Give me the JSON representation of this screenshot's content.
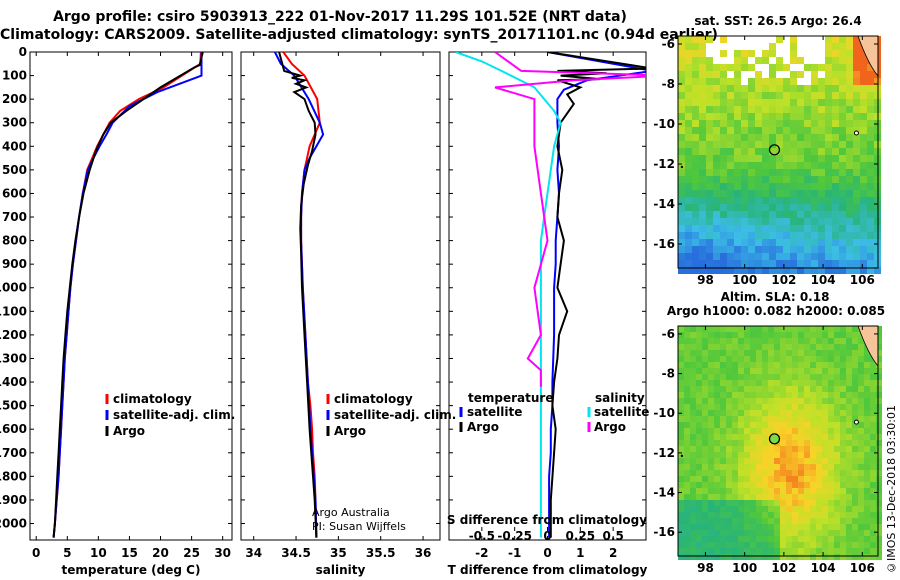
{
  "header": {
    "line1": "Argo profile: csiro 5903913_222 01-Nov-2017 11.29S 101.52E (NRT data)",
    "line2": "Climatology: CARS2009. Satellite-adjusted climatology: synTS_20171101.nc (0.94d earlier)"
  },
  "stamp": "©IMOS 13-Dec-2018 03:30:01",
  "colors": {
    "climatology": "#ff0000",
    "satellite": "#0000ff",
    "argo": "#000000",
    "sat_salinity": "#00e5ee",
    "argo_salinity": "#ff00ff"
  },
  "chart_data": [
    {
      "id": "temperature",
      "type": "line",
      "xlabel": "temperature (deg C)",
      "ylabel": "",
      "xlim": [
        -1,
        31.5
      ],
      "ylim": [
        2070,
        0
      ],
      "xticks": [
        0,
        5,
        10,
        15,
        20,
        25,
        30
      ],
      "yticks": [
        0,
        100,
        200,
        300,
        400,
        500,
        600,
        700,
        800,
        900,
        1000,
        1100,
        1200,
        1300,
        1400,
        1500,
        1600,
        1700,
        1800,
        1900,
        2000
      ],
      "legend": [
        "climatology",
        "satellite-adj. clim.",
        "Argo"
      ],
      "series": [
        {
          "name": "climatology",
          "color": "#ff0000",
          "x": [
            26.5,
            26.4,
            20.5,
            16.5,
            13.5,
            11.8,
            10.8,
            9.8,
            9.0,
            8.2,
            7.5,
            6.9,
            6.4,
            5.9,
            5.5,
            5.2,
            4.9,
            4.6,
            4.4,
            4.2,
            4.0,
            3.8,
            3.6,
            3.45,
            3.3,
            3.15,
            3.0,
            2.9,
            2.8
          ],
          "y": [
            0,
            50,
            150,
            200,
            250,
            300,
            350,
            400,
            450,
            500,
            600,
            700,
            800,
            900,
            1000,
            1100,
            1200,
            1300,
            1400,
            1500,
            1600,
            1700,
            1800,
            1850,
            1900,
            1950,
            2000,
            2030,
            2060
          ]
        },
        {
          "name": "satellite-adj. clim.",
          "color": "#0000ff",
          "x": [
            26.6,
            26.6,
            25.6,
            19.5,
            15.0,
            12.3,
            11.3,
            10.2,
            9.2,
            8.3,
            7.5,
            6.9,
            6.4,
            5.9,
            5.5,
            5.2,
            4.9,
            4.6,
            4.4,
            4.2,
            4.0,
            3.8,
            3.6,
            3.3,
            3.0,
            2.8
          ],
          "y": [
            0,
            100,
            110,
            170,
            230,
            300,
            350,
            400,
            450,
            500,
            600,
            700,
            800,
            900,
            1000,
            1100,
            1200,
            1300,
            1400,
            1500,
            1600,
            1700,
            1800,
            1900,
            2000,
            2060
          ]
        },
        {
          "name": "Argo",
          "color": "#000000",
          "x": [
            26.8,
            26.3,
            25.5,
            20.0,
            14.5,
            12.0,
            10.8,
            9.6,
            8.6,
            7.6,
            6.9,
            6.3,
            5.8,
            5.4,
            5.0,
            4.7,
            4.4,
            4.2,
            4.0,
            3.8,
            3.6,
            3.4,
            3.2,
            3.0,
            2.8
          ],
          "y": [
            0,
            55,
            65,
            150,
            250,
            300,
            350,
            420,
            500,
            600,
            700,
            800,
            900,
            1000,
            1100,
            1200,
            1300,
            1400,
            1500,
            1600,
            1700,
            1800,
            1900,
            2000,
            2060
          ]
        }
      ]
    },
    {
      "id": "salinity",
      "type": "line",
      "xlabel": "salinity",
      "xlim": [
        33.85,
        36.2
      ],
      "ylim": [
        2070,
        0
      ],
      "xticks": [
        34,
        34.5,
        35,
        35.5,
        36
      ],
      "legend": [
        "climatology",
        "satellite-adj. clim.",
        "Argo"
      ],
      "note": [
        "Argo Australia",
        "PI: Susan Wijffels"
      ],
      "series": [
        {
          "name": "climatology",
          "color": "#ff0000",
          "x": [
            34.35,
            34.45,
            34.6,
            34.75,
            34.78,
            34.72,
            34.66,
            34.6,
            34.57,
            34.56,
            34.56,
            34.58,
            34.61,
            34.64,
            34.67,
            34.69,
            34.7,
            34.72,
            34.73,
            34.74
          ],
          "y": [
            0,
            50,
            100,
            200,
            300,
            350,
            400,
            500,
            600,
            700,
            800,
            1000,
            1200,
            1400,
            1500,
            1600,
            1700,
            1800,
            1900,
            2060
          ]
        },
        {
          "name": "satellite-adj. clim.",
          "color": "#0000ff",
          "x": [
            34.25,
            34.32,
            34.48,
            34.65,
            34.78,
            34.82,
            34.74,
            34.66,
            34.6,
            34.57,
            34.56,
            34.56,
            34.58,
            34.61,
            34.64,
            34.67,
            34.69,
            34.71,
            34.73,
            34.74
          ],
          "y": [
            0,
            50,
            100,
            200,
            300,
            350,
            400,
            450,
            500,
            600,
            700,
            800,
            1000,
            1200,
            1400,
            1600,
            1700,
            1800,
            1900,
            2060
          ]
        },
        {
          "name": "Argo",
          "color": "#000000",
          "x": [
            34.3,
            34.33,
            34.36,
            34.55,
            34.45,
            34.6,
            34.5,
            34.62,
            34.48,
            34.6,
            34.65,
            34.72,
            34.73,
            34.69,
            34.64,
            34.59,
            34.56,
            34.55,
            34.56,
            34.57,
            34.6,
            34.63,
            34.66,
            34.68,
            34.7,
            34.72,
            34.74
          ],
          "y": [
            0,
            40,
            80,
            100,
            110,
            120,
            135,
            150,
            170,
            200,
            250,
            300,
            350,
            420,
            480,
            560,
            650,
            750,
            850,
            1000,
            1200,
            1400,
            1600,
            1700,
            1800,
            1900,
            2060
          ]
        }
      ]
    },
    {
      "id": "difference",
      "type": "line",
      "xlabel": "T difference from climatology",
      "xlabel2": "S difference from climatology",
      "xlim": [
        -3,
        3
      ],
      "ylim": [
        2070,
        0
      ],
      "xticks": [
        -2,
        -1,
        0,
        1,
        2
      ],
      "xticks_s": [
        -0.5,
        -0.25,
        0,
        0.25,
        0.5
      ],
      "xticks_s_labels": [
        "-0.5",
        "-0.25",
        "0",
        "0.25",
        "0.5"
      ],
      "legend_left_title": "temperature",
      "legend_right_title": "salinity",
      "legend_left": [
        "satellite",
        "Argo"
      ],
      "legend_right": [
        "satellite",
        "Argo"
      ],
      "series": [
        {
          "name": "T satellite",
          "color": "#0000ff",
          "x": [
            0.0,
            3.2,
            1.2,
            0.5,
            0.3,
            0.3,
            0.35,
            0.3,
            0.35,
            0.3,
            0.25,
            0.25,
            0.2,
            0.2,
            0.15,
            0.15,
            0.1,
            0.1,
            0.05,
            0.05,
            0.05
          ],
          "y": [
            0,
            80,
            120,
            160,
            200,
            300,
            400,
            500,
            600,
            700,
            800,
            900,
            1000,
            1200,
            1400,
            1500,
            1600,
            1700,
            1800,
            1900,
            2060
          ]
        },
        {
          "name": "T Argo",
          "color": "#000000",
          "x": [
            0.0,
            3.2,
            0.3,
            1.8,
            0.4,
            1.6,
            0.3,
            1.0,
            0.6,
            0.8,
            0.6,
            0.4,
            0.3,
            0.45,
            0.35,
            0.3,
            0.5,
            0.4,
            0.3,
            0.6,
            0.35,
            0.3,
            0.2,
            0.15,
            0.25,
            0.2,
            0.1,
            0.1
          ],
          "y": [
            0,
            70,
            80,
            90,
            100,
            115,
            120,
            150,
            180,
            220,
            260,
            300,
            400,
            500,
            600,
            700,
            800,
            900,
            1000,
            1100,
            1200,
            1300,
            1400,
            1500,
            1600,
            1700,
            1900,
            2060
          ]
        },
        {
          "name": "S satellite",
          "color": "#00e5ee",
          "x": [
            -0.7,
            -0.5,
            -0.35,
            -0.1,
            0.05,
            0.1,
            0.05,
            0.0,
            -0.05,
            -0.05,
            -0.05,
            -0.05,
            -0.05,
            -0.05,
            -0.05,
            -0.05
          ],
          "y": [
            0,
            40,
            80,
            150,
            250,
            300,
            400,
            600,
            800,
            1000,
            1200,
            1400,
            1500,
            1600,
            1800,
            2060
          ]
        },
        {
          "name": "S Argo",
          "color": "#ff00ff",
          "x": [
            -0.4,
            -0.2,
            0.9,
            0.2,
            -0.4,
            -0.1,
            -0.1,
            -0.05,
            0.0,
            -0.1,
            -0.05,
            -0.15,
            -0.05,
            -0.05
          ],
          "y": [
            0,
            80,
            100,
            120,
            150,
            200,
            400,
            600,
            800,
            1000,
            1200,
            1300,
            1350,
            1420
          ]
        }
      ]
    },
    {
      "id": "sst_map",
      "type": "heatmap",
      "title": "sat. SST: 26.5 Argo: 26.4",
      "xticks": [
        98,
        100,
        102,
        104,
        106
      ],
      "yticks": [
        -6,
        -8,
        -10,
        -12,
        -14,
        -16
      ],
      "xlim": [
        96.6,
        106.8
      ],
      "ylim": [
        -17.2,
        -5.6
      ],
      "argo_position": [
        101.52,
        -11.29
      ]
    },
    {
      "id": "sla_map",
      "type": "heatmap",
      "title": "Altim. SLA: 0.18",
      "subtitle": "Argo h1000: 0.082 h2000: 0.085",
      "xticks": [
        98,
        100,
        102,
        104,
        106
      ],
      "yticks": [
        -6,
        -8,
        -10,
        -12,
        -14,
        -16
      ],
      "xlim": [
        96.6,
        106.8
      ],
      "ylim": [
        -17.2,
        -5.6
      ],
      "argo_position": [
        101.52,
        -11.29
      ]
    }
  ]
}
